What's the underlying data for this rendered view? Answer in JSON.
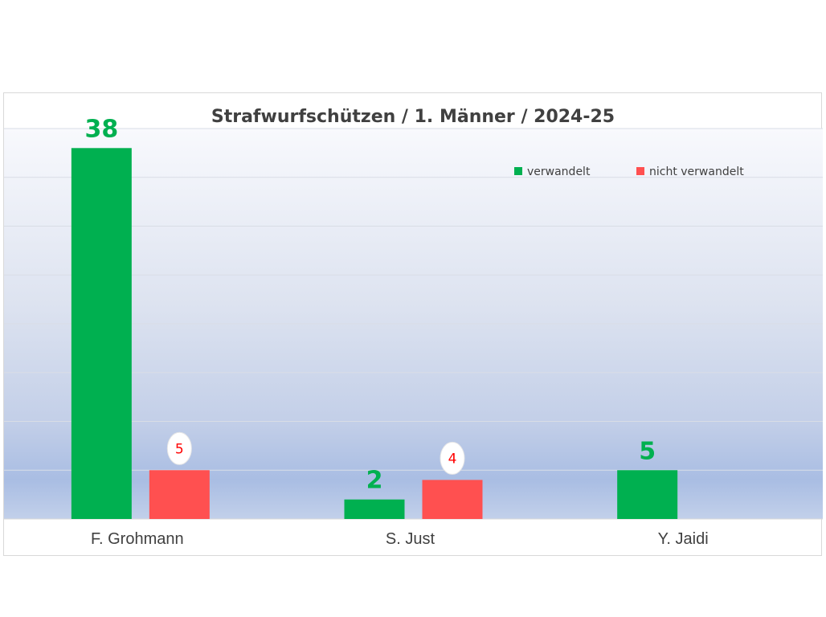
{
  "chart_data": {
    "type": "bar",
    "title": "Strafwurfschützen / 1. Männer / 2024-25",
    "xlabel": "",
    "ylabel": "",
    "categories": [
      "F. Grohmann",
      "S. Just",
      "Y. Jaidi"
    ],
    "series": [
      {
        "name": "verwandelt",
        "values": [
          38,
          2,
          5
        ],
        "color": "#00b050"
      },
      {
        "name": "nicht verwandelt",
        "values": [
          5,
          4,
          null
        ],
        "color": "#ff5050"
      }
    ],
    "ylim": [
      0,
      40
    ],
    "grid": true,
    "legend_position": "top-right"
  }
}
